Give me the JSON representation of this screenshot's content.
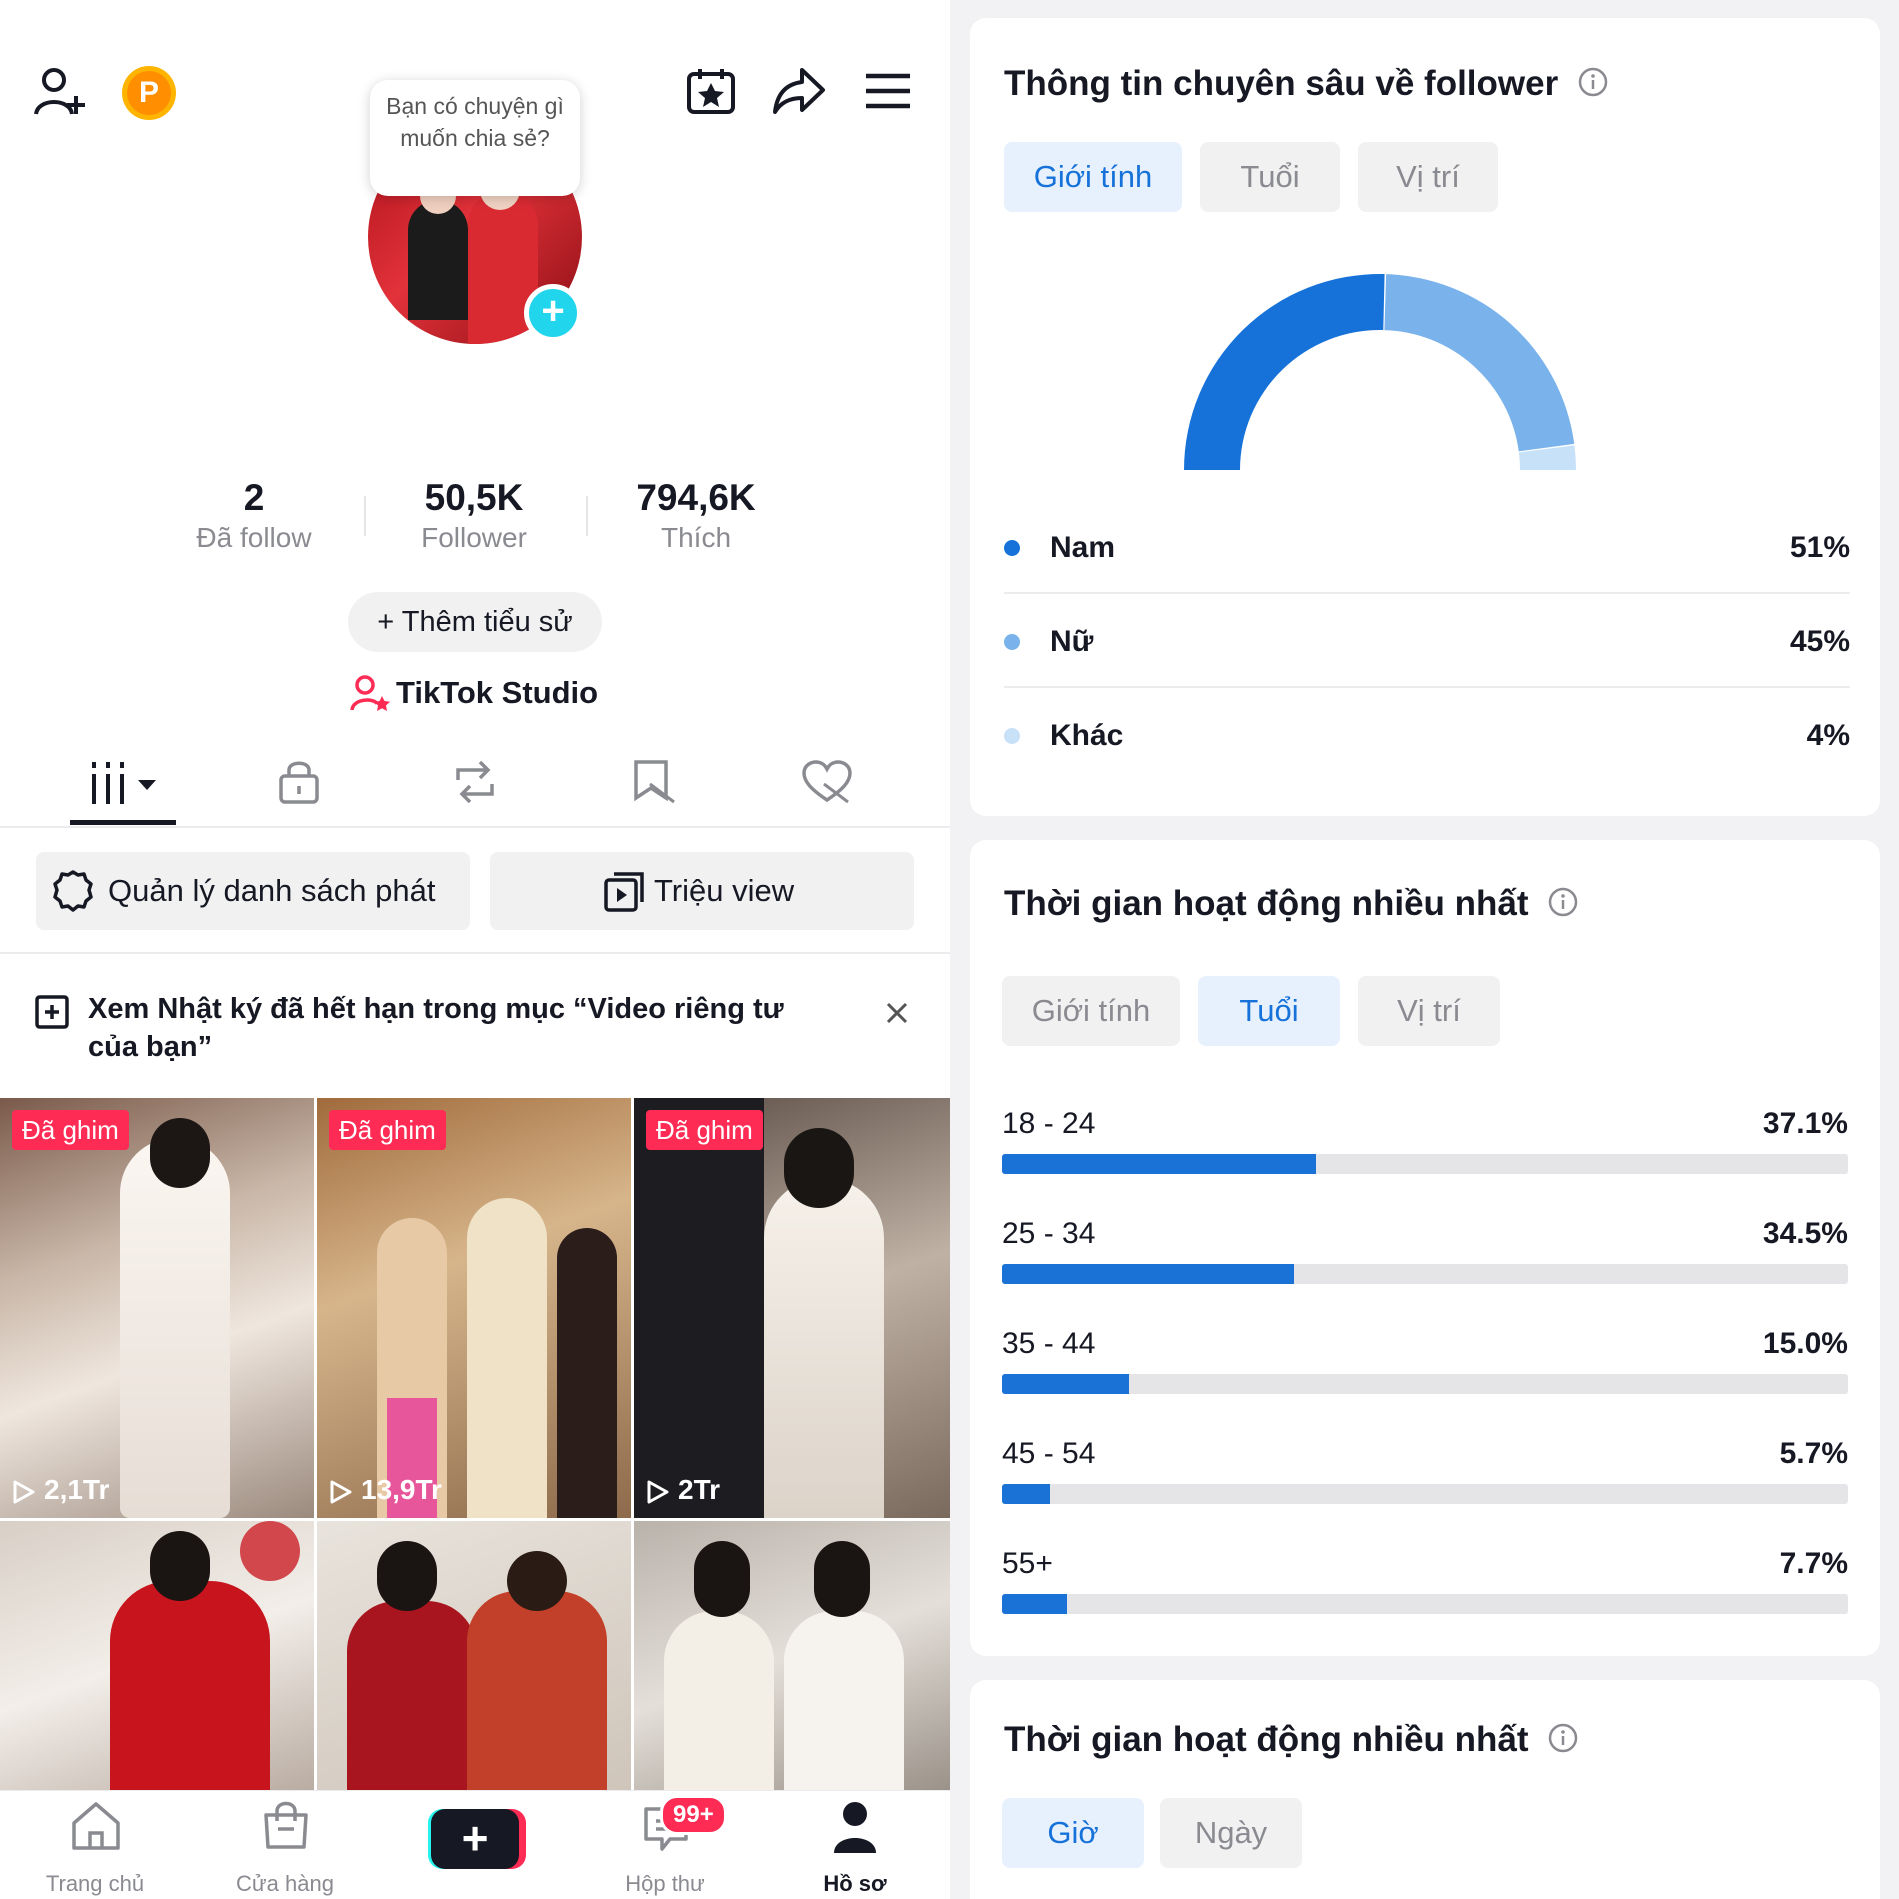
{
  "profile": {
    "note_bubble": "Bạn có chuyện gì muốn chia sẻ?",
    "stats": [
      {
        "value": "2",
        "label": "Đã follow"
      },
      {
        "value": "50,5K",
        "label": "Follower"
      },
      {
        "value": "794,6K",
        "label": "Thích"
      }
    ],
    "add_bio": "+ Thêm tiểu sử",
    "studio": "TikTok Studio",
    "coin_letter": "P"
  },
  "actions": {
    "playlist": "Quản lý danh sách phát",
    "million_views": "Triệu view"
  },
  "notice": {
    "text": "Xem Nhật ký đã hết hạn trong mục “Video riêng tư của bạn”"
  },
  "videos": [
    {
      "pinned": "Đã ghim",
      "views": "2,1Tr"
    },
    {
      "pinned": "Đã ghim",
      "views": "13,9Tr"
    },
    {
      "pinned": "Đã ghim",
      "views": "2Tr"
    }
  ],
  "nav": {
    "home": "Trang chủ",
    "shop": "Cửa hàng",
    "inbox": "Hộp thư",
    "inbox_badge": "99+",
    "profile": "Hồ sơ"
  },
  "follower_insights": {
    "title": "Thông tin chuyên sâu về follower",
    "tabs": [
      "Giới tính",
      "Tuổi",
      "Vị trí"
    ],
    "active_tab": "Giới tính",
    "legend": [
      {
        "name": "Nam",
        "percent": "51%",
        "color": "#1672d9"
      },
      {
        "name": "Nữ",
        "percent": "45%",
        "color": "#7ab3ec"
      },
      {
        "name": "Khác",
        "percent": "4%",
        "color": "#c7e1f8"
      }
    ]
  },
  "age_section": {
    "title": "Thời gian hoạt động nhiều nhất",
    "tabs": [
      "Giới tính",
      "Tuổi",
      "Vị trí"
    ],
    "active_tab": "Tuổi",
    "rows": [
      {
        "range": "18 - 24",
        "percent": "37.1%"
      },
      {
        "range": "25 - 34",
        "percent": "34.5%"
      },
      {
        "range": "35 - 44",
        "percent": "15.0%"
      },
      {
        "range": "45 - 54",
        "percent": "5.7%"
      },
      {
        "range": "55+",
        "percent": "7.7%"
      }
    ]
  },
  "activity_section": {
    "title": "Thời gian hoạt động nhiều nhất",
    "tabs": [
      "Giờ",
      "Ngày"
    ],
    "active_tab": "Giờ"
  },
  "chart_data": {
    "type": "pie",
    "categories": [
      "Nam",
      "Nữ",
      "Khác"
    ],
    "values": [
      51,
      45,
      4
    ],
    "title": "",
    "legend": "bottom"
  }
}
